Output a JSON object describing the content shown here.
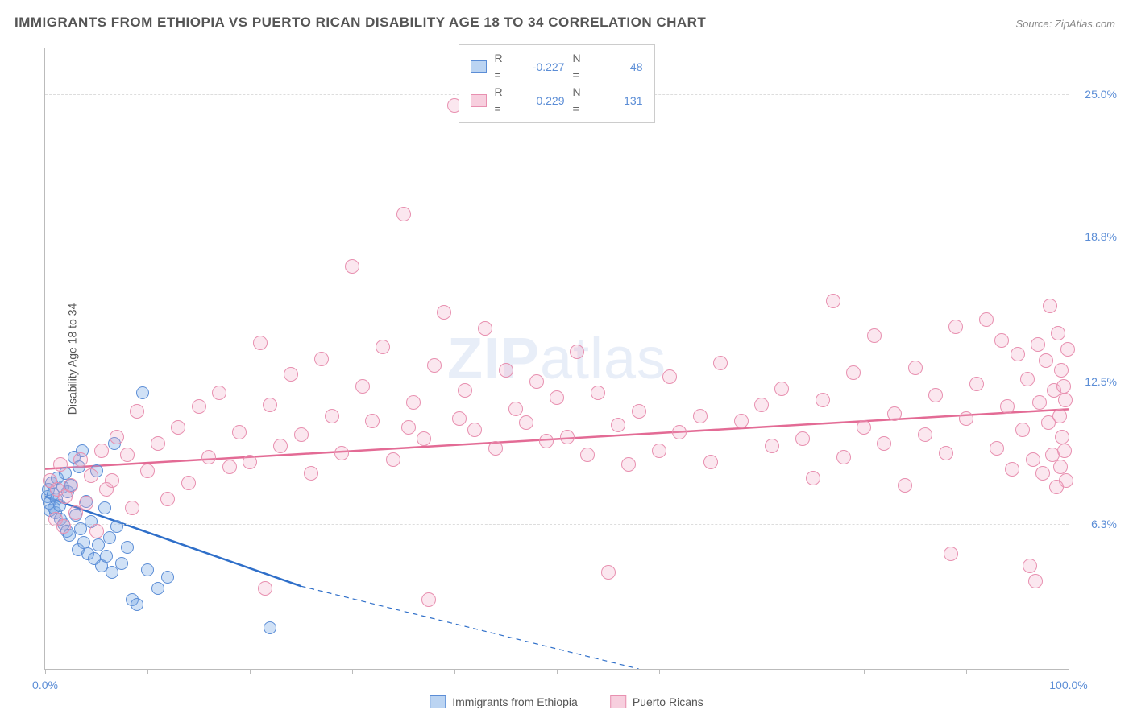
{
  "title": "IMMIGRANTS FROM ETHIOPIA VS PUERTO RICAN DISABILITY AGE 18 TO 34 CORRELATION CHART",
  "source": "Source: ZipAtlas.com",
  "watermark_a": "ZIP",
  "watermark_b": "atlas",
  "chart": {
    "type": "scatter",
    "ylabel": "Disability Age 18 to 34",
    "xlim": [
      0,
      100
    ],
    "ylim": [
      0,
      27
    ],
    "x_ticks": [
      0,
      10,
      20,
      30,
      40,
      50,
      60,
      70,
      80,
      90,
      100
    ],
    "x_tick_labels": {
      "0": "0.0%",
      "100": "100.0%"
    },
    "y_grid": [
      6.3,
      12.5,
      18.8,
      25.0
    ],
    "y_grid_labels": [
      "6.3%",
      "12.5%",
      "18.8%",
      "25.0%"
    ],
    "background_color": "#ffffff",
    "grid_color": "#dddddd",
    "axis_color": "#bbbbbb",
    "label_color": "#5b8dd6",
    "series": [
      {
        "name": "Immigrants from Ethiopia",
        "color_fill": "rgba(120,170,230,0.35)",
        "color_stroke": "#5b8dd6",
        "marker_size": 16,
        "R": "-0.227",
        "N": "48",
        "trend": {
          "x1": 0,
          "y1": 7.5,
          "x2": 25,
          "y2": 3.6,
          "x2_ext": 58,
          "y2_ext": -1.5,
          "color": "#2f6fc9",
          "width": 2.5
        },
        "points": [
          [
            0.2,
            7.5
          ],
          [
            0.3,
            7.8
          ],
          [
            0.5,
            6.9
          ],
          [
            0.4,
            7.2
          ],
          [
            0.6,
            8.1
          ],
          [
            0.8,
            7.6
          ],
          [
            1.0,
            6.8
          ],
          [
            0.9,
            7.0
          ],
          [
            1.2,
            8.3
          ],
          [
            1.1,
            7.4
          ],
          [
            1.5,
            6.5
          ],
          [
            1.4,
            7.1
          ],
          [
            1.7,
            7.9
          ],
          [
            1.8,
            6.3
          ],
          [
            2.0,
            8.5
          ],
          [
            2.2,
            7.7
          ],
          [
            2.1,
            6.0
          ],
          [
            2.5,
            8.0
          ],
          [
            2.4,
            5.8
          ],
          [
            2.8,
            9.2
          ],
          [
            3.0,
            6.7
          ],
          [
            3.2,
            5.2
          ],
          [
            3.3,
            8.8
          ],
          [
            3.5,
            6.1
          ],
          [
            3.8,
            5.5
          ],
          [
            3.6,
            9.5
          ],
          [
            4.0,
            7.3
          ],
          [
            4.2,
            5.0
          ],
          [
            4.5,
            6.4
          ],
          [
            4.8,
            4.8
          ],
          [
            5.0,
            8.6
          ],
          [
            5.2,
            5.4
          ],
          [
            5.5,
            4.5
          ],
          [
            5.8,
            7.0
          ],
          [
            6.0,
            4.9
          ],
          [
            6.3,
            5.7
          ],
          [
            6.5,
            4.2
          ],
          [
            7.0,
            6.2
          ],
          [
            7.5,
            4.6
          ],
          [
            8.0,
            5.3
          ],
          [
            8.5,
            3.0
          ],
          [
            9.0,
            2.8
          ],
          [
            9.5,
            12.0
          ],
          [
            10.0,
            4.3
          ],
          [
            11.0,
            3.5
          ],
          [
            12.0,
            4.0
          ],
          [
            22.0,
            1.8
          ],
          [
            6.8,
            9.8
          ]
        ]
      },
      {
        "name": "Puerto Ricans",
        "color_fill": "rgba(240,160,190,0.25)",
        "color_stroke": "#e890b0",
        "marker_size": 18,
        "R": "0.229",
        "N": "131",
        "trend": {
          "x1": 0,
          "y1": 8.7,
          "x2": 100,
          "y2": 11.3,
          "color": "#e36b95",
          "width": 2.5
        },
        "points": [
          [
            0.5,
            8.2
          ],
          [
            1.0,
            6.5
          ],
          [
            1.2,
            7.8
          ],
          [
            1.5,
            8.9
          ],
          [
            1.8,
            6.2
          ],
          [
            2.0,
            7.5
          ],
          [
            2.5,
            8.0
          ],
          [
            3.0,
            6.8
          ],
          [
            3.5,
            9.1
          ],
          [
            4.0,
            7.2
          ],
          [
            4.5,
            8.4
          ],
          [
            5.0,
            6.0
          ],
          [
            5.5,
            9.5
          ],
          [
            6.0,
            7.8
          ],
          [
            6.5,
            8.2
          ],
          [
            7.0,
            10.1
          ],
          [
            8.0,
            9.3
          ],
          [
            8.5,
            7.0
          ],
          [
            9.0,
            11.2
          ],
          [
            10.0,
            8.6
          ],
          [
            11.0,
            9.8
          ],
          [
            12.0,
            7.4
          ],
          [
            13.0,
            10.5
          ],
          [
            14.0,
            8.1
          ],
          [
            15.0,
            11.4
          ],
          [
            16.0,
            9.2
          ],
          [
            17.0,
            12.0
          ],
          [
            18.0,
            8.8
          ],
          [
            19.0,
            10.3
          ],
          [
            20.0,
            9.0
          ],
          [
            21.0,
            14.2
          ],
          [
            22.0,
            11.5
          ],
          [
            23.0,
            9.7
          ],
          [
            24.0,
            12.8
          ],
          [
            25.0,
            10.2
          ],
          [
            26.0,
            8.5
          ],
          [
            27.0,
            13.5
          ],
          [
            28.0,
            11.0
          ],
          [
            29.0,
            9.4
          ],
          [
            30.0,
            17.5
          ],
          [
            31.0,
            12.3
          ],
          [
            32.0,
            10.8
          ],
          [
            33.0,
            14.0
          ],
          [
            34.0,
            9.1
          ],
          [
            35.0,
            19.8
          ],
          [
            36.0,
            11.6
          ],
          [
            37.0,
            10.0
          ],
          [
            38.0,
            13.2
          ],
          [
            39.0,
            15.5
          ],
          [
            40.0,
            24.5
          ],
          [
            41.0,
            12.1
          ],
          [
            42.0,
            10.4
          ],
          [
            43.0,
            14.8
          ],
          [
            44.0,
            9.6
          ],
          [
            45.0,
            13.0
          ],
          [
            46.0,
            11.3
          ],
          [
            47.0,
            10.7
          ],
          [
            48.0,
            12.5
          ],
          [
            49.0,
            9.9
          ],
          [
            50.0,
            11.8
          ],
          [
            51.0,
            10.1
          ],
          [
            52.0,
            13.8
          ],
          [
            53.0,
            9.3
          ],
          [
            54.0,
            12.0
          ],
          [
            55.0,
            4.2
          ],
          [
            56.0,
            10.6
          ],
          [
            57.0,
            8.9
          ],
          [
            58.0,
            11.2
          ],
          [
            60.0,
            9.5
          ],
          [
            61.0,
            12.7
          ],
          [
            62.0,
            10.3
          ],
          [
            64.0,
            11.0
          ],
          [
            65.0,
            9.0
          ],
          [
            66.0,
            13.3
          ],
          [
            68.0,
            10.8
          ],
          [
            70.0,
            11.5
          ],
          [
            71.0,
            9.7
          ],
          [
            72.0,
            12.2
          ],
          [
            74.0,
            10.0
          ],
          [
            75.0,
            8.3
          ],
          [
            76.0,
            11.7
          ],
          [
            77.0,
            16.0
          ],
          [
            78.0,
            9.2
          ],
          [
            79.0,
            12.9
          ],
          [
            80.0,
            10.5
          ],
          [
            81.0,
            14.5
          ],
          [
            82.0,
            9.8
          ],
          [
            83.0,
            11.1
          ],
          [
            84.0,
            8.0
          ],
          [
            85.0,
            13.1
          ],
          [
            86.0,
            10.2
          ],
          [
            87.0,
            11.9
          ],
          [
            88.0,
            9.4
          ],
          [
            89.0,
            14.9
          ],
          [
            90.0,
            10.9
          ],
          [
            91.0,
            12.4
          ],
          [
            92.0,
            15.2
          ],
          [
            93.0,
            9.6
          ],
          [
            93.5,
            14.3
          ],
          [
            94.0,
            11.4
          ],
          [
            94.5,
            8.7
          ],
          [
            95.0,
            13.7
          ],
          [
            95.5,
            10.4
          ],
          [
            96.0,
            12.6
          ],
          [
            96.2,
            4.5
          ],
          [
            96.5,
            9.1
          ],
          [
            97.0,
            14.1
          ],
          [
            97.2,
            11.6
          ],
          [
            97.5,
            8.5
          ],
          [
            97.8,
            13.4
          ],
          [
            98.0,
            10.7
          ],
          [
            98.2,
            15.8
          ],
          [
            98.4,
            9.3
          ],
          [
            98.6,
            12.1
          ],
          [
            98.8,
            7.9
          ],
          [
            99.0,
            14.6
          ],
          [
            99.1,
            11.0
          ],
          [
            99.2,
            8.8
          ],
          [
            99.3,
            13.0
          ],
          [
            99.4,
            10.1
          ],
          [
            99.5,
            12.3
          ],
          [
            99.6,
            9.5
          ],
          [
            99.7,
            11.7
          ],
          [
            99.8,
            8.2
          ],
          [
            99.9,
            13.9
          ],
          [
            96.8,
            3.8
          ],
          [
            88.5,
            5.0
          ],
          [
            21.5,
            3.5
          ],
          [
            37.5,
            3.0
          ],
          [
            40.5,
            10.9
          ],
          [
            35.5,
            10.5
          ]
        ]
      }
    ]
  },
  "bottom_legend": [
    {
      "swatch": "blue",
      "label": "Immigrants from Ethiopia"
    },
    {
      "swatch": "pink",
      "label": "Puerto Ricans"
    }
  ],
  "stats_labels": {
    "R": "R =",
    "N": "N ="
  }
}
